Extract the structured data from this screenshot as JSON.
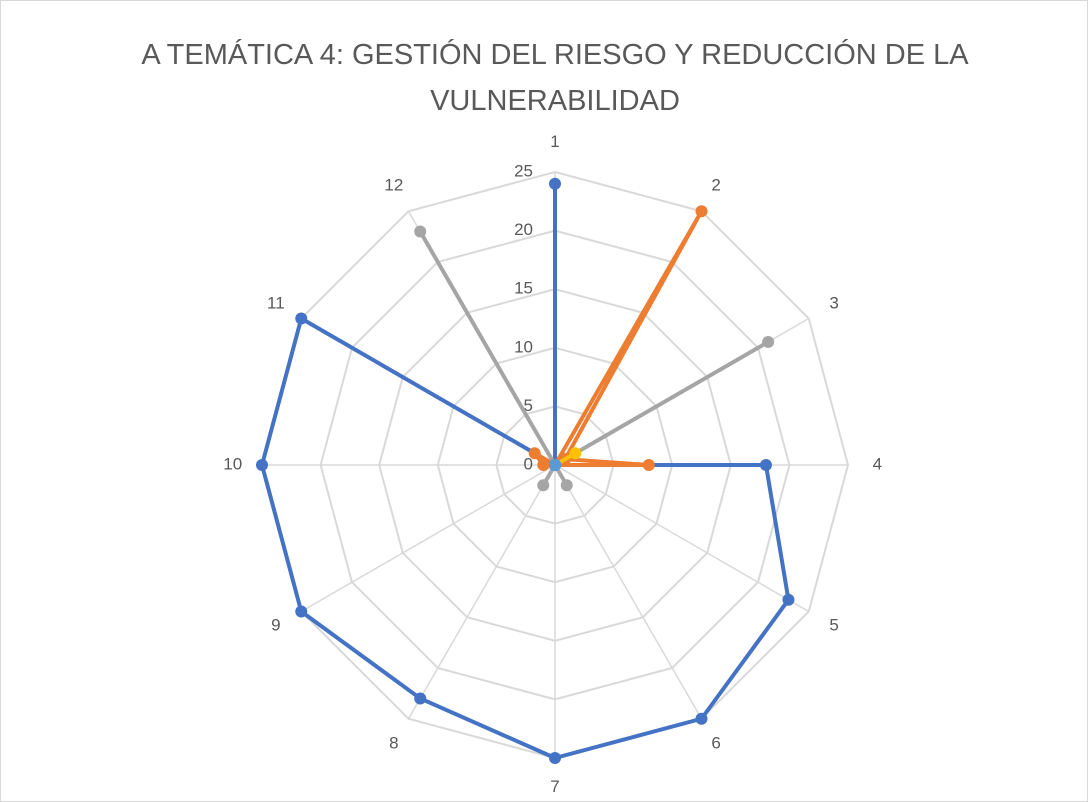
{
  "chart_data": {
    "type": "radar",
    "title": "A TEMÁTICA 4: GESTIÓN DEL RIESGO Y REDUCCIÓN DE LA VULNERABILIDAD",
    "categories": [
      "1",
      "2",
      "3",
      "4",
      "5",
      "6",
      "7",
      "8",
      "9",
      "10",
      "11",
      "12"
    ],
    "rlim": [
      0,
      25
    ],
    "rticks": [
      0,
      5,
      10,
      15,
      20,
      25
    ],
    "grid": true,
    "series": [
      {
        "color": "#4472c4",
        "values": [
          24,
          0,
          0,
          18,
          23,
          25,
          25,
          23,
          25,
          25,
          25,
          0
        ]
      },
      {
        "color": "#ed7d31",
        "values": [
          0,
          25,
          1,
          8,
          0,
          0,
          0,
          0,
          0,
          1,
          2,
          0
        ]
      },
      {
        "color": "#a5a5a5",
        "values": [
          0,
          0,
          21,
          0,
          0,
          2,
          0,
          2,
          0,
          0,
          0,
          23
        ]
      },
      {
        "color": "#ffc000",
        "values": [
          0,
          0,
          2,
          0,
          0,
          0,
          0,
          0,
          0,
          0,
          0,
          0
        ]
      },
      {
        "color": "#5b9bd5",
        "values": [
          0,
          0,
          0,
          0,
          0,
          0,
          0,
          0,
          0,
          0,
          0,
          0
        ]
      }
    ]
  }
}
